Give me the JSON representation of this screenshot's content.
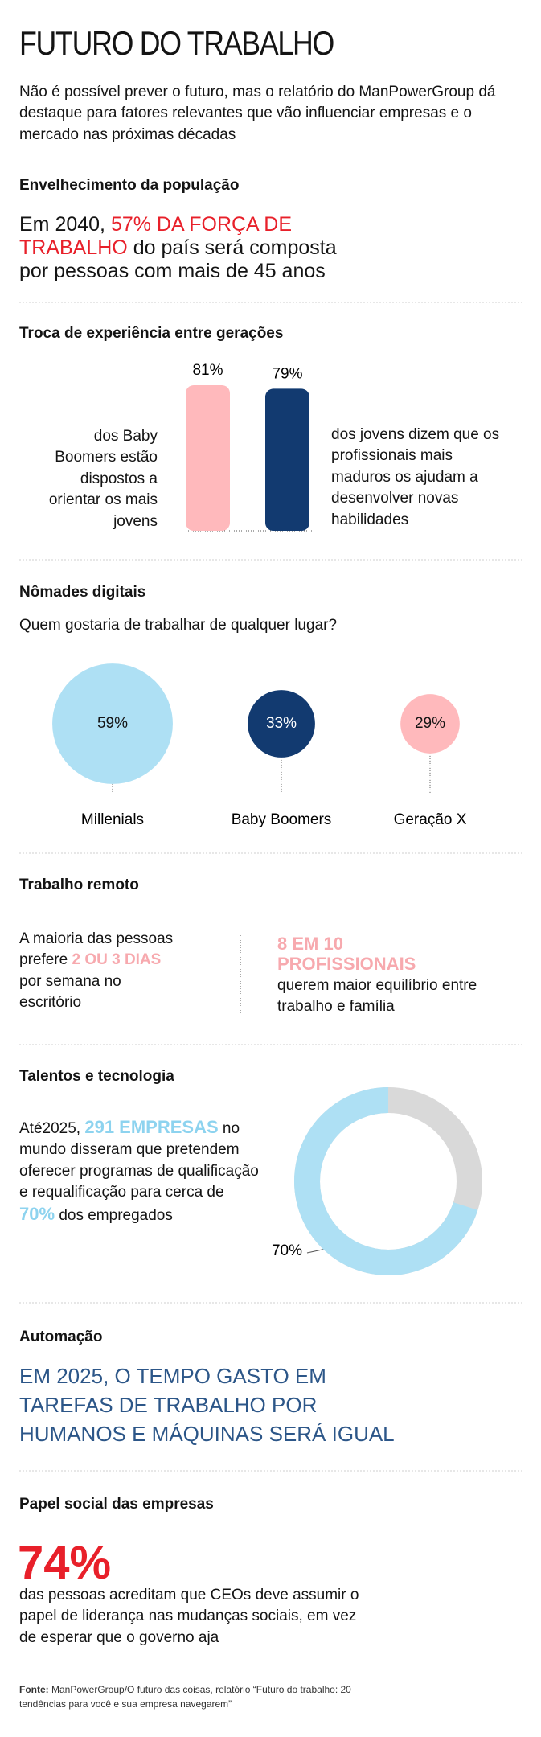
{
  "header": {
    "title": "FUTURO DO TRABALHO",
    "intro": "Não é possível prever o futuro, mas o relatório do ManPowerGroup dá destaque para fatores relevantes que vão influenciar empresas e o mercado nas próximas décadas"
  },
  "aging": {
    "heading": "Envelhecimento da população",
    "text": [
      "Em 2040, ",
      "57% DA FORÇA DE TRABALHO",
      " do país será composta por pessoas com mais de 45 anos"
    ]
  },
  "generations": {
    "heading": "Troca de experiência entre gerações",
    "values": [
      81,
      79
    ],
    "value_labels": [
      "81%",
      "79%"
    ],
    "colors": [
      "#ffb9bc",
      "#123a70"
    ],
    "left_text": "dos Baby Boomers estão dispostos a orientar os mais jovens",
    "right_text": "dos jovens dizem que os profissionais mais maduros os ajudam a desenvolver novas habilidades"
  },
  "nomads": {
    "heading": "Nômades digitais",
    "question": "Quem gostaria de trabalhar de qualquer lugar?",
    "categories": [
      "Millenials",
      "Baby Boomers",
      "Geração X"
    ],
    "values": [
      59,
      33,
      29
    ],
    "value_labels": [
      "59%",
      "33%",
      "29%"
    ],
    "colors": [
      "#aee0f4",
      "#123a70",
      "#ffb9bc"
    ]
  },
  "remote": {
    "heading": "Trabalho remoto",
    "left_text": [
      "A maioria das pessoas prefere ",
      "2 OU 3 DIAS",
      " por semana no escritório"
    ],
    "right_highlight": "8 EM 10 PROFISSIONAIS",
    "right_text": "querem maior equilíbrio entre trabalho e família"
  },
  "talent": {
    "heading": "Talentos e tecnologia",
    "text": [
      "Até2025, ",
      "291 EMPRESAS",
      " no mundo disseram que pretendem oferecer programas de qualificação e requalificação para cerca de ",
      "70%",
      " dos empregados"
    ],
    "donut": {
      "value": 70,
      "value_label": "70%",
      "color": "#aee0f4",
      "rest_color": "#d9d9d9"
    }
  },
  "automation": {
    "heading": "Automação",
    "text": "EM 2025, O TEMPO GASTO EM TAREFAS DE TRABALHO POR HUMANOS E MÁQUINAS SERÁ IGUAL"
  },
  "social": {
    "heading": "Papel social das empresas",
    "figure": "74%",
    "text": "das pessoas acreditam que CEOs deve assumir o papel de liderança nas mudanças sociais, em vez de esperar que o governo aja"
  },
  "source": {
    "label": "Fonte:",
    "text": " ManPowerGroup/O futuro das coisas, relatório “Futuro do trabalho: 20 tendências para você e sua empresa navegarem”"
  }
}
